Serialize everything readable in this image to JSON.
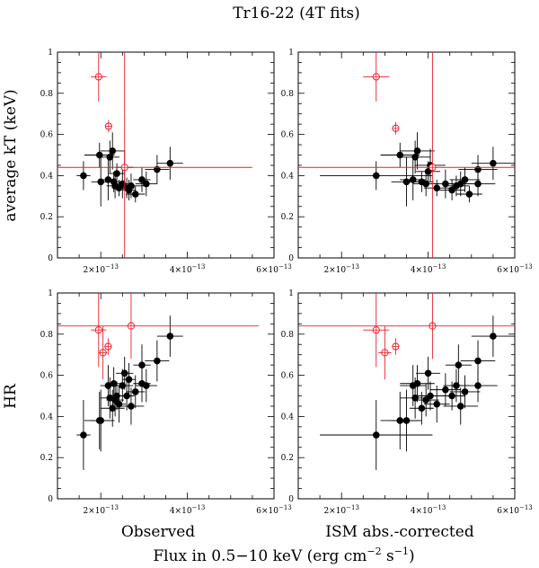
{
  "title": "Tr16-22 (4T fits)",
  "ylabel_top": "average kT (keV)",
  "ylabel_bottom": "HR",
  "xlabel_left": "Observed",
  "xlabel_right": "ISM abs.-corrected",
  "xlabel_bottom": "Flux in 0.5−10 keV (erg cm",
  "xlabel_exp1": "−2",
  "xlabel_mid": " s",
  "xlabel_exp2": "−1",
  "xlabel_end": ")",
  "colors": {
    "black": "#000000",
    "red": "#e8202a"
  },
  "chart_data": [
    {
      "panel": "top-left",
      "type": "scatter",
      "xlim": [
        1e-13,
        6e-13
      ],
      "ylim": [
        0,
        1
      ],
      "xticks": [
        {
          "v": 2e-13,
          "m": "2×10",
          "e": "−13"
        },
        {
          "v": 4e-13,
          "m": "4×10",
          "e": "−13"
        },
        {
          "v": 6e-13,
          "m": "6×10",
          "e": "−13"
        }
      ],
      "yticks": [
        {
          "v": 0,
          "t": "0"
        },
        {
          "v": 0.2,
          "t": "0.2"
        },
        {
          "v": 0.4,
          "t": "0.4"
        },
        {
          "v": 0.6,
          "t": "0.6"
        },
        {
          "v": 0.8,
          "t": "0.8"
        },
        {
          "v": 1,
          "t": "1"
        }
      ],
      "series": [
        {
          "name": "black",
          "style": "filled",
          "color": "#000000",
          "points": [
            {
              "x": 1.6e-13,
              "y": 0.4,
              "xerr": 1.6e-14,
              "yerr": 0.07
            },
            {
              "x": 1.97e-13,
              "y": 0.5,
              "xerr": 3.5e-14,
              "yerr": 0.06
            },
            {
              "x": 2e-13,
              "y": 0.37,
              "xerr": 2.2e-14,
              "yerr": 0.12
            },
            {
              "x": 2.17e-13,
              "y": 0.38,
              "xerr": 1.8e-14,
              "yerr": 0.1
            },
            {
              "x": 2.21e-13,
              "y": 0.49,
              "xerr": 2.2e-14,
              "yerr": 0.08
            },
            {
              "x": 2.27e-13,
              "y": 0.52,
              "xerr": 2.8e-14,
              "yerr": 0.09
            },
            {
              "x": 2.3e-13,
              "y": 0.37,
              "xerr": 1.5e-14,
              "yerr": 0.05
            },
            {
              "x": 2.33e-13,
              "y": 0.35,
              "xerr": 2e-14,
              "yerr": 0.06
            },
            {
              "x": 2.37e-13,
              "y": 0.41,
              "xerr": 1.8e-14,
              "yerr": 0.05
            },
            {
              "x": 2.42e-13,
              "y": 0.34,
              "xerr": 1.6e-14,
              "yerr": 0.04
            },
            {
              "x": 2.5e-13,
              "y": 0.36,
              "xerr": 2.5e-14,
              "yerr": 0.07
            },
            {
              "x": 2.55e-13,
              "y": 0.44,
              "xerr": 2e-14,
              "yerr": 0.08
            },
            {
              "x": 2.6e-13,
              "y": 0.34,
              "xerr": 1.8e-14,
              "yerr": 0.05
            },
            {
              "x": 2.65e-13,
              "y": 0.33,
              "xerr": 1.5e-14,
              "yerr": 0.05
            },
            {
              "x": 2.7e-13,
              "y": 0.35,
              "xerr": 3e-14,
              "yerr": 0.06
            },
            {
              "x": 2.8e-13,
              "y": 0.31,
              "xerr": 2.2e-14,
              "yerr": 0.04
            },
            {
              "x": 2.95e-13,
              "y": 0.38,
              "xerr": 2e-14,
              "yerr": 0.06
            },
            {
              "x": 3.05e-13,
              "y": 0.36,
              "xerr": 2.5e-14,
              "yerr": 0.06
            },
            {
              "x": 3.3e-13,
              "y": 0.43,
              "xerr": 2.8e-14,
              "yerr": 0.07
            },
            {
              "x": 3.6e-13,
              "y": 0.46,
              "xerr": 3e-14,
              "yerr": 0.08
            }
          ]
        },
        {
          "name": "red",
          "style": "open",
          "color": "#e8202a",
          "points": [
            {
              "x": 1.95e-13,
              "y": 0.88,
              "xerr": 1.8e-14,
              "yerr": 0.12
            },
            {
              "x": 2.18e-13,
              "y": 0.64,
              "xerr": 6e-15,
              "yerr": 0.03
            },
            {
              "x": 2.55e-13,
              "y": 0.44,
              "xerr": 2.95e-13,
              "yerr": 0.6
            }
          ]
        }
      ]
    },
    {
      "panel": "top-right",
      "type": "scatter",
      "xlim": [
        1e-13,
        6e-13
      ],
      "ylim": [
        0,
        1
      ],
      "xticks": [
        {
          "v": 2e-13,
          "m": "2×10",
          "e": "−13"
        },
        {
          "v": 4e-13,
          "m": "4×10",
          "e": "−13"
        },
        {
          "v": 6e-13,
          "m": "6×10",
          "e": "−13"
        }
      ],
      "yticks": [
        {
          "v": 0,
          "t": "0"
        },
        {
          "v": 0.2,
          "t": "0.2"
        },
        {
          "v": 0.4,
          "t": "0.4"
        },
        {
          "v": 0.6,
          "t": "0.6"
        },
        {
          "v": 0.8,
          "t": "0.8"
        },
        {
          "v": 1,
          "t": "1"
        }
      ],
      "series": [
        {
          "name": "black",
          "style": "filled",
          "color": "#000000",
          "points": [
            {
              "x": 2.8e-13,
              "y": 0.4,
              "xerr": 1.3e-13,
              "yerr": 0.07
            },
            {
              "x": 3.35e-13,
              "y": 0.5,
              "xerr": 4.5e-14,
              "yerr": 0.06
            },
            {
              "x": 3.5e-13,
              "y": 0.37,
              "xerr": 3.5e-14,
              "yerr": 0.12
            },
            {
              "x": 3.65e-13,
              "y": 0.38,
              "xerr": 3e-14,
              "yerr": 0.1
            },
            {
              "x": 3.7e-13,
              "y": 0.49,
              "xerr": 3.5e-14,
              "yerr": 0.08
            },
            {
              "x": 3.75e-13,
              "y": 0.52,
              "xerr": 4e-14,
              "yerr": 0.09
            },
            {
              "x": 3.85e-13,
              "y": 0.37,
              "xerr": 2.8e-14,
              "yerr": 0.05
            },
            {
              "x": 3.95e-13,
              "y": 0.36,
              "xerr": 3e-14,
              "yerr": 0.06
            },
            {
              "x": 4e-13,
              "y": 0.42,
              "xerr": 2.8e-14,
              "yerr": 0.05
            },
            {
              "x": 4.05e-13,
              "y": 0.45,
              "xerr": 3.5e-14,
              "yerr": 0.08
            },
            {
              "x": 4.2e-13,
              "y": 0.34,
              "xerr": 3e-14,
              "yerr": 0.04
            },
            {
              "x": 4.4e-13,
              "y": 0.36,
              "xerr": 3.5e-14,
              "yerr": 0.07
            },
            {
              "x": 4.55e-13,
              "y": 0.33,
              "xerr": 3e-14,
              "yerr": 0.05
            },
            {
              "x": 4.65e-13,
              "y": 0.35,
              "xerr": 3e-14,
              "yerr": 0.05
            },
            {
              "x": 4.75e-13,
              "y": 0.36,
              "xerr": 4e-14,
              "yerr": 0.06
            },
            {
              "x": 4.85e-13,
              "y": 0.38,
              "xerr": 3.5e-14,
              "yerr": 0.06
            },
            {
              "x": 4.95e-13,
              "y": 0.31,
              "xerr": 3e-14,
              "yerr": 0.04
            },
            {
              "x": 5.15e-13,
              "y": 0.36,
              "xerr": 4e-14,
              "yerr": 0.06
            },
            {
              "x": 5.15e-13,
              "y": 0.43,
              "xerr": 4.5e-14,
              "yerr": 0.07
            },
            {
              "x": 5.5e-13,
              "y": 0.46,
              "xerr": 5e-14,
              "yerr": 0.08
            }
          ]
        },
        {
          "name": "red",
          "style": "open",
          "color": "#e8202a",
          "points": [
            {
              "x": 2.8e-13,
              "y": 0.88,
              "xerr": 3e-14,
              "yerr": 0.12
            },
            {
              "x": 3.25e-13,
              "y": 0.63,
              "xerr": 6e-15,
              "yerr": 0.03
            },
            {
              "x": 4.1e-13,
              "y": 0.44,
              "xerr": 4.5e-13,
              "yerr": 0.6
            }
          ]
        }
      ]
    },
    {
      "panel": "bottom-left",
      "type": "scatter",
      "xlim": [
        1e-13,
        6e-13
      ],
      "ylim": [
        0,
        1
      ],
      "xticks": [
        {
          "v": 2e-13,
          "m": "2×10",
          "e": "−13"
        },
        {
          "v": 4e-13,
          "m": "4×10",
          "e": "−13"
        },
        {
          "v": 6e-13,
          "m": "6×10",
          "e": "−13"
        }
      ],
      "yticks": [
        {
          "v": 0,
          "t": "0"
        },
        {
          "v": 0.2,
          "t": "0.2"
        },
        {
          "v": 0.4,
          "t": "0.4"
        },
        {
          "v": 0.6,
          "t": "0.6"
        },
        {
          "v": 0.8,
          "t": "0.8"
        },
        {
          "v": 1,
          "t": "1"
        }
      ],
      "series": [
        {
          "name": "black",
          "style": "filled",
          "color": "#000000",
          "points": [
            {
              "x": 1.6e-13,
              "y": 0.31,
              "xerr": 1.6e-14,
              "yerr": 0.17
            },
            {
              "x": 1.97e-13,
              "y": 0.38,
              "xerr": 3.5e-14,
              "yerr": 0.14
            },
            {
              "x": 2e-13,
              "y": 0.38,
              "xerr": 2.2e-14,
              "yerr": 0.15
            },
            {
              "x": 2.17e-13,
              "y": 0.55,
              "xerr": 1.8e-14,
              "yerr": 0.1
            },
            {
              "x": 2.21e-13,
              "y": 0.49,
              "xerr": 2.2e-14,
              "yerr": 0.1
            },
            {
              "x": 2.27e-13,
              "y": 0.44,
              "xerr": 2.8e-14,
              "yerr": 0.09
            },
            {
              "x": 2.3e-13,
              "y": 0.56,
              "xerr": 1.5e-14,
              "yerr": 0.08
            },
            {
              "x": 2.33e-13,
              "y": 0.48,
              "xerr": 2e-14,
              "yerr": 0.08
            },
            {
              "x": 2.37e-13,
              "y": 0.5,
              "xerr": 1.8e-14,
              "yerr": 0.07
            },
            {
              "x": 2.42e-13,
              "y": 0.46,
              "xerr": 1.6e-14,
              "yerr": 0.09
            },
            {
              "x": 2.5e-13,
              "y": 0.55,
              "xerr": 2.5e-14,
              "yerr": 0.08
            },
            {
              "x": 2.55e-13,
              "y": 0.61,
              "xerr": 2e-14,
              "yerr": 0.08
            },
            {
              "x": 2.6e-13,
              "y": 0.5,
              "xerr": 1.8e-14,
              "yerr": 0.07
            },
            {
              "x": 2.65e-13,
              "y": 0.58,
              "xerr": 1.5e-14,
              "yerr": 0.08
            },
            {
              "x": 2.7e-13,
              "y": 0.45,
              "xerr": 3e-14,
              "yerr": 0.09
            },
            {
              "x": 2.8e-13,
              "y": 0.52,
              "xerr": 2.2e-14,
              "yerr": 0.08
            },
            {
              "x": 2.95e-13,
              "y": 0.56,
              "xerr": 2e-14,
              "yerr": 0.09
            },
            {
              "x": 3.05e-13,
              "y": 0.55,
              "xerr": 2.5e-14,
              "yerr": 0.08
            },
            {
              "x": 2.95e-13,
              "y": 0.65,
              "xerr": 2e-14,
              "yerr": 0.1
            },
            {
              "x": 3.3e-13,
              "y": 0.67,
              "xerr": 2.8e-14,
              "yerr": 0.1
            },
            {
              "x": 3.6e-13,
              "y": 0.79,
              "xerr": 3e-14,
              "yerr": 0.1
            }
          ]
        },
        {
          "name": "red",
          "style": "open",
          "color": "#e8202a",
          "points": [
            {
              "x": 1.95e-13,
              "y": 0.82,
              "xerr": 1.8e-14,
              "yerr": 0.18
            },
            {
              "x": 2.05e-13,
              "y": 0.71,
              "xerr": 1e-14,
              "yerr": 0.13
            },
            {
              "x": 2.17e-13,
              "y": 0.74,
              "xerr": 6e-15,
              "yerr": 0.04
            },
            {
              "x": 2.7e-13,
              "y": 0.84,
              "xerr": 2.95e-13,
              "yerr": 0.16
            }
          ]
        }
      ]
    },
    {
      "panel": "bottom-right",
      "type": "scatter",
      "xlim": [
        1e-13,
        6e-13
      ],
      "ylim": [
        0,
        1
      ],
      "xticks": [
        {
          "v": 2e-13,
          "m": "2×10",
          "e": "−13"
        },
        {
          "v": 4e-13,
          "m": "4×10",
          "e": "−13"
        },
        {
          "v": 6e-13,
          "m": "6×10",
          "e": "−13"
        }
      ],
      "yticks": [
        {
          "v": 0,
          "t": "0"
        },
        {
          "v": 0.2,
          "t": "0.2"
        },
        {
          "v": 0.4,
          "t": "0.4"
        },
        {
          "v": 0.6,
          "t": "0.6"
        },
        {
          "v": 0.8,
          "t": "0.8"
        },
        {
          "v": 1,
          "t": "1"
        }
      ],
      "series": [
        {
          "name": "black",
          "style": "filled",
          "color": "#000000",
          "points": [
            {
              "x": 2.8e-13,
              "y": 0.31,
              "xerr": 1.3e-13,
              "yerr": 0.17
            },
            {
              "x": 3.35e-13,
              "y": 0.38,
              "xerr": 4.5e-14,
              "yerr": 0.14
            },
            {
              "x": 3.5e-13,
              "y": 0.38,
              "xerr": 3.5e-14,
              "yerr": 0.15
            },
            {
              "x": 3.65e-13,
              "y": 0.55,
              "xerr": 3e-14,
              "yerr": 0.1
            },
            {
              "x": 3.7e-13,
              "y": 0.49,
              "xerr": 3.5e-14,
              "yerr": 0.1
            },
            {
              "x": 3.75e-13,
              "y": 0.56,
              "xerr": 4e-14,
              "yerr": 0.09
            },
            {
              "x": 3.85e-13,
              "y": 0.44,
              "xerr": 2.8e-14,
              "yerr": 0.08
            },
            {
              "x": 3.95e-13,
              "y": 0.48,
              "xerr": 3e-14,
              "yerr": 0.08
            },
            {
              "x": 4e-13,
              "y": 0.61,
              "xerr": 2.8e-14,
              "yerr": 0.08
            },
            {
              "x": 4.05e-13,
              "y": 0.5,
              "xerr": 3.5e-14,
              "yerr": 0.07
            },
            {
              "x": 4.2e-13,
              "y": 0.46,
              "xerr": 3e-14,
              "yerr": 0.09
            },
            {
              "x": 4.4e-13,
              "y": 0.53,
              "xerr": 3.5e-14,
              "yerr": 0.08
            },
            {
              "x": 4.55e-13,
              "y": 0.5,
              "xerr": 3e-14,
              "yerr": 0.07
            },
            {
              "x": 4.65e-13,
              "y": 0.55,
              "xerr": 3e-14,
              "yerr": 0.08
            },
            {
              "x": 4.75e-13,
              "y": 0.45,
              "xerr": 4e-14,
              "yerr": 0.09
            },
            {
              "x": 4.85e-13,
              "y": 0.52,
              "xerr": 3.5e-14,
              "yerr": 0.08
            },
            {
              "x": 4.7e-13,
              "y": 0.65,
              "xerr": 3e-14,
              "yerr": 0.1
            },
            {
              "x": 5.15e-13,
              "y": 0.67,
              "xerr": 4e-14,
              "yerr": 0.1
            },
            {
              "x": 5.15e-13,
              "y": 0.55,
              "xerr": 4.5e-14,
              "yerr": 0.08
            },
            {
              "x": 5.5e-13,
              "y": 0.79,
              "xerr": 5e-14,
              "yerr": 0.1
            }
          ]
        },
        {
          "name": "red",
          "style": "open",
          "color": "#e8202a",
          "points": [
            {
              "x": 2.8e-13,
              "y": 0.82,
              "xerr": 3e-14,
              "yerr": 0.18
            },
            {
              "x": 3e-13,
              "y": 0.71,
              "xerr": 1.5e-14,
              "yerr": 0.13
            },
            {
              "x": 3.25e-13,
              "y": 0.74,
              "xerr": 6e-15,
              "yerr": 0.04
            },
            {
              "x": 4.1e-13,
              "y": 0.84,
              "xerr": 4.5e-13,
              "yerr": 0.16
            }
          ]
        }
      ]
    }
  ]
}
